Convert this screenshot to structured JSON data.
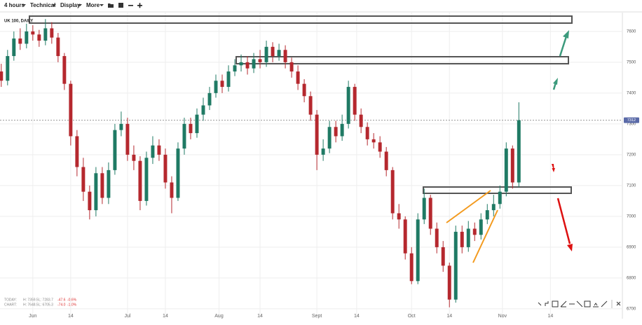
{
  "toolbar": [
    "4 hours",
    "Technical",
    "Display",
    "More"
  ],
  "stats": [
    [
      "TODAY:",
      "H: 7359.5",
      "L: 7283.7",
      "-47.6",
      "-0.6%"
    ],
    [
      "CHART:",
      "H: 7648.5",
      "L: 6705.3",
      "-74.0",
      "-1.0%"
    ]
  ],
  "chart_data": {
    "type": "candlestick",
    "title": "UK 100, DAILY",
    "open": [
      7470,
      7440,
      7520,
      7577,
      7560,
      7600,
      7590,
      7570,
      7610,
      7580,
      7520,
      7430,
      7260,
      7160,
      7080,
      7020,
      7140,
      7060,
      7150,
      7280,
      7300,
      7200,
      7180,
      7050,
      7190,
      7230,
      7200,
      7110,
      7060,
      7220,
      7300,
      7270,
      7330,
      7360,
      7400,
      7440,
      7420,
      7470,
      7490,
      7500,
      7480,
      7510,
      7500,
      7550,
      7520,
      7540,
      7500,
      7470,
      7430,
      7390,
      7330,
      7200,
      7220,
      7290,
      7260,
      7300,
      7420,
      7330,
      7290,
      7250,
      7240,
      7210,
      7150,
      7010,
      6990,
      6880,
      6790,
      6990,
      7060,
      6960,
      6900,
      6840,
      6730,
      6950,
      6900,
      6960,
      6940,
      6990,
      7020,
      7040,
      7080,
      7220,
      7110
    ],
    "high": [
      7495,
      7540,
      7600,
      7610,
      7625,
      7620,
      7605,
      7640,
      7630,
      7595,
      7530,
      7440,
      7280,
      7190,
      7100,
      7160,
      7160,
      7175,
      7300,
      7340,
      7320,
      7230,
      7195,
      7210,
      7260,
      7250,
      7220,
      7130,
      7240,
      7320,
      7320,
      7350,
      7385,
      7420,
      7460,
      7460,
      7490,
      7510,
      7525,
      7520,
      7530,
      7540,
      7570,
      7565,
      7560,
      7555,
      7515,
      7490,
      7445,
      7405,
      7345,
      7250,
      7310,
      7310,
      7330,
      7440,
      7430,
      7350,
      7305,
      7270,
      7260,
      7225,
      7160,
      7040,
      7000,
      6900,
      7010,
      7090,
      7070,
      6980,
      6920,
      6850,
      6970,
      6970,
      6985,
      6980,
      7010,
      7040,
      7070,
      7100,
      7240,
      7230,
      7370
    ],
    "low": [
      7420,
      7425,
      7505,
      7540,
      7545,
      7570,
      7550,
      7555,
      7560,
      7500,
      7410,
      7230,
      7130,
      7050,
      6990,
      7000,
      7040,
      7040,
      7135,
      7260,
      7180,
      7150,
      7020,
      7035,
      7170,
      7180,
      7090,
      7010,
      7050,
      7200,
      7250,
      7255,
      7310,
      7345,
      7385,
      7400,
      7405,
      7455,
      7470,
      7460,
      7465,
      7480,
      7485,
      7500,
      7505,
      7480,
      7450,
      7410,
      7370,
      7310,
      7150,
      7180,
      7205,
      7240,
      7245,
      7285,
      7310,
      7270,
      7230,
      7220,
      7190,
      7130,
      6990,
      6960,
      6860,
      6780,
      6780,
      6975,
      6940,
      6880,
      6820,
      6705,
      6720,
      6880,
      6885,
      6920,
      6925,
      6975,
      7000,
      7025,
      7065,
      7090,
      7095
    ],
    "close": [
      7440,
      7520,
      7577,
      7560,
      7600,
      7590,
      7570,
      7610,
      7580,
      7520,
      7430,
      7260,
      7160,
      7080,
      7020,
      7140,
      7060,
      7150,
      7280,
      7300,
      7200,
      7180,
      7050,
      7190,
      7230,
      7200,
      7110,
      7060,
      7220,
      7300,
      7270,
      7330,
      7360,
      7400,
      7440,
      7420,
      7470,
      7490,
      7500,
      7480,
      7510,
      7500,
      7550,
      7520,
      7540,
      7500,
      7470,
      7430,
      7390,
      7330,
      7200,
      7220,
      7290,
      7260,
      7300,
      7420,
      7330,
      7290,
      7250,
      7240,
      7210,
      7150,
      7010,
      6990,
      6880,
      6790,
      6990,
      7060,
      6960,
      6900,
      6840,
      6730,
      6950,
      6900,
      6960,
      6940,
      6990,
      7020,
      7040,
      7080,
      7220,
      7110,
      7312
    ],
    "colors": {
      "up": "#1f7a64",
      "down": "#b5282e",
      "last": "#5a6aa8"
    },
    "xlim": [
      -0.2,
      98.4
    ],
    "xticks": [
      {
        "value": 5,
        "label": "Jun"
      },
      {
        "value": 11,
        "label": "14"
      },
      {
        "value": 20,
        "label": "Jul"
      },
      {
        "value": 26,
        "label": "14"
      },
      {
        "value": 34.5,
        "label": "Aug"
      },
      {
        "value": 41,
        "label": "14"
      },
      {
        "value": 50,
        "label": "Sept"
      },
      {
        "value": 56.3,
        "label": "14"
      },
      {
        "value": 65,
        "label": "Oct"
      },
      {
        "value": 71,
        "label": "14"
      },
      {
        "value": 79.4,
        "label": "Nov"
      },
      {
        "value": 87,
        "label": "14"
      }
    ],
    "ylim": [
      6668,
      7661
    ],
    "yticks": [
      6700,
      6800,
      6900,
      7000,
      7100,
      7200,
      7300,
      7400,
      7500,
      7600
    ],
    "grid": true,
    "last_price_line": true
  }
}
